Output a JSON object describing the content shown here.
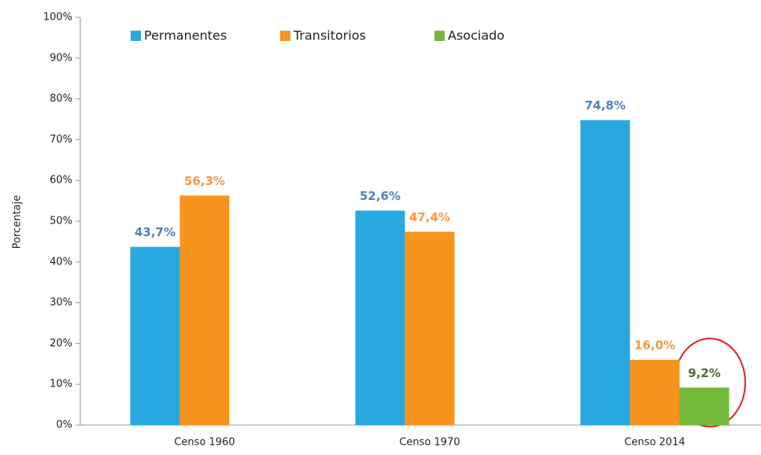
{
  "chart_data": {
    "type": "bar",
    "ylabel": "Porcentaje",
    "categories": [
      "Censo 1960",
      "Censo 1970",
      "Censo 2014"
    ],
    "series": [
      {
        "name": "Permanentes",
        "color": "#29a8e0",
        "label_color": "#4f81bd",
        "values": [
          43.7,
          52.6,
          74.8
        ],
        "value_labels": [
          "43,7%",
          "52,6%",
          "74,8%"
        ]
      },
      {
        "name": "Transitorios",
        "color": "#f7941d",
        "label_color": "#f79646",
        "values": [
          56.3,
          47.4,
          16.0
        ],
        "value_labels": [
          "56,3%",
          "47,4%",
          "16,0%"
        ]
      },
      {
        "name": "Asociado",
        "color": "#76b83a",
        "label_color": "#4d6b2e",
        "values": [
          null,
          null,
          9.2
        ],
        "value_labels": [
          null,
          null,
          "9,2%"
        ]
      }
    ],
    "ylim": [
      0,
      100
    ],
    "yticks": [
      {
        "value": 0,
        "label": "0%"
      },
      {
        "value": 10,
        "label": "10%"
      },
      {
        "value": 20,
        "label": "20%"
      },
      {
        "value": 30,
        "label": "30%"
      },
      {
        "value": 40,
        "label": "40%"
      },
      {
        "value": 50,
        "label": "50%"
      },
      {
        "value": 60,
        "label": "60%"
      },
      {
        "value": 70,
        "label": "70%"
      },
      {
        "value": 80,
        "label": "80%"
      },
      {
        "value": 90,
        "label": "90%"
      },
      {
        "value": 100,
        "label": "100%"
      }
    ],
    "legend": "top"
  }
}
